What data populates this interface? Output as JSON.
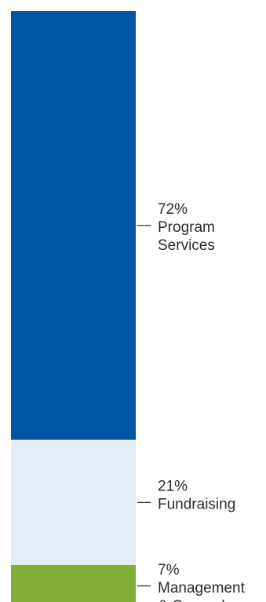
{
  "chart_data": {
    "type": "bar",
    "stacked": true,
    "orientation": "vertical",
    "grid": false,
    "legend": "none",
    "segments": [
      {
        "percent_label": "72%",
        "name_lines": [
          "Program",
          "Services"
        ],
        "value": 72,
        "color": "#0055A5"
      },
      {
        "percent_label": "21%",
        "name_lines": [
          "Fundraising"
        ],
        "value": 21,
        "color": "#E6ECF6"
      },
      {
        "percent_label": "7%",
        "name_lines": [
          "Management",
          "& General"
        ],
        "value": 7,
        "color": "#84B03A"
      }
    ]
  }
}
